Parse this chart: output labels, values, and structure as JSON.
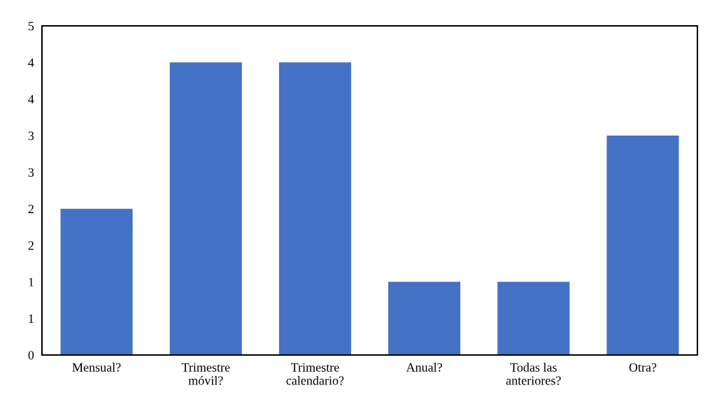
{
  "chart_data": {
    "type": "bar",
    "categories": [
      "Mensual?",
      "Trimestre\nmóvil?",
      "Trimestre\ncalendario?",
      "Anual?",
      "Todas las\nanteriores?",
      "Otra?"
    ],
    "values": [
      2,
      4,
      4,
      1,
      1,
      3
    ],
    "color": "#4472c4",
    "ylim": [
      0,
      4.5
    ],
    "yticks": [
      0,
      {
        "value": 0.5,
        "label": "1"
      },
      1,
      {
        "value": 1.5,
        "label": "2"
      },
      2,
      {
        "value": 2.5,
        "label": "3"
      },
      3,
      {
        "value": 3.5,
        "label": "4"
      },
      4,
      {
        "value": 4.5,
        "label": "5"
      }
    ],
    "grid": false,
    "legend": false
  }
}
